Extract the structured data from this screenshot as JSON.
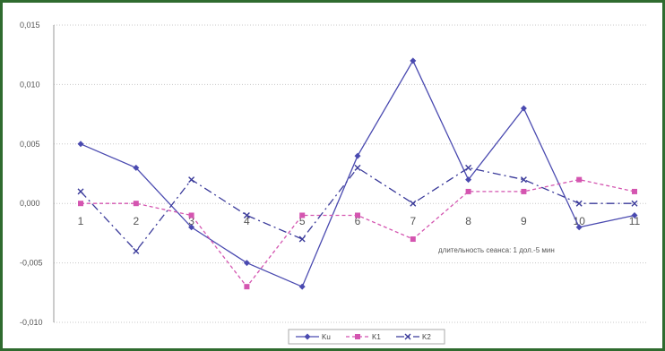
{
  "chart_data": {
    "type": "line",
    "categories": [
      "1",
      "2",
      "3",
      "4",
      "5",
      "6",
      "7",
      "8",
      "9",
      "10",
      "11"
    ],
    "ylim": [
      -0.01,
      0.015
    ],
    "yticks": [
      "-0,010",
      "-0,005",
      "0,000",
      "0,005",
      "0,010",
      "0,015"
    ],
    "grid": true,
    "legend_position": "bottom",
    "annotation": "длительность сеанса: 1 дол.-5 мин",
    "series": [
      {
        "name": "Ku",
        "color": "#4a4ab0",
        "style": "solid",
        "marker": "diamond",
        "values": [
          0.005,
          0.003,
          -0.002,
          -0.005,
          -0.007,
          0.004,
          0.012,
          0.002,
          0.008,
          -0.002,
          -0.001
        ]
      },
      {
        "name": "K1",
        "color": "#d455b0",
        "style": "dashed",
        "marker": "square",
        "values": [
          0.0,
          0.0,
          -0.001,
          -0.007,
          -0.001,
          -0.001,
          -0.003,
          0.001,
          0.001,
          0.002,
          0.001
        ]
      },
      {
        "name": "K2",
        "color": "#3a3a9a",
        "style": "dashdot",
        "marker": "x",
        "values": [
          0.001,
          -0.004,
          0.002,
          -0.001,
          -0.003,
          0.003,
          0.0,
          0.003,
          0.002,
          0.0,
          0.0
        ]
      }
    ]
  }
}
